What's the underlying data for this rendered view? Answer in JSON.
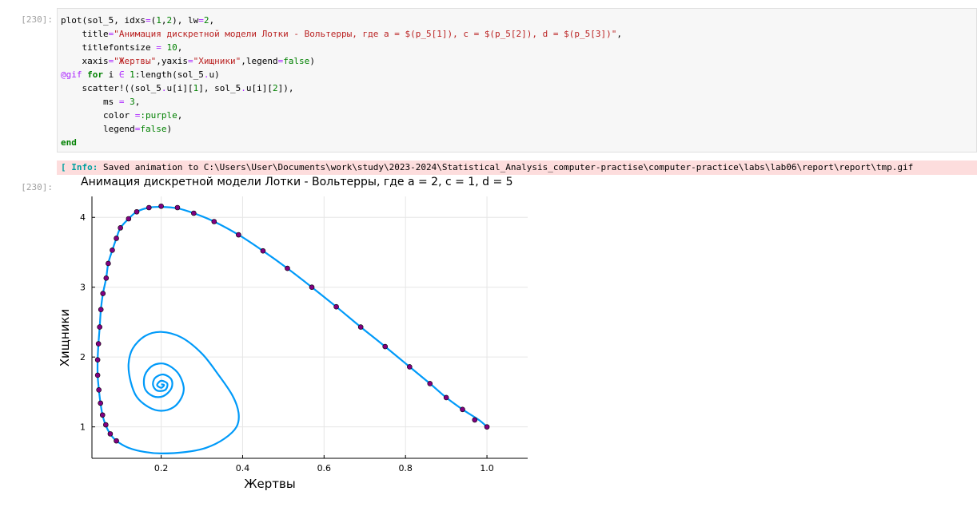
{
  "input_prompt": "[230]:",
  "output_prompt": "[230]:",
  "code_lines": [
    [
      [
        "plot(sol_5, idxs",
        ""
      ],
      [
        "=",
        "op"
      ],
      [
        "(",
        ""
      ],
      [
        "1",
        "num"
      ],
      [
        ",",
        ""
      ],
      [
        "2",
        "num"
      ],
      [
        "), lw",
        ""
      ],
      [
        "=",
        "op"
      ],
      [
        "2",
        "num"
      ],
      [
        ",",
        ""
      ]
    ],
    [
      [
        "    title",
        ""
      ],
      [
        "=",
        "op"
      ],
      [
        "\"Анимация дискретной модели Лотки - Вольтерры, где a = $(p_5[1]), c = $(p_5[2]), d = $(p_5[3])\"",
        "str"
      ],
      [
        ",",
        ""
      ]
    ],
    [
      [
        "    titlefontsize ",
        ""
      ],
      [
        "=",
        "op"
      ],
      [
        " ",
        ""
      ],
      [
        "10",
        "num"
      ],
      [
        ",",
        ""
      ]
    ],
    [
      [
        "    xaxis",
        ""
      ],
      [
        "=",
        "op"
      ],
      [
        "\"Жертвы\"",
        "str"
      ],
      [
        ",yaxis",
        ""
      ],
      [
        "=",
        "op"
      ],
      [
        "\"Хищники\"",
        "str"
      ],
      [
        ",legend",
        ""
      ],
      [
        "=",
        "op"
      ],
      [
        "false",
        "num"
      ],
      [
        ")",
        ""
      ]
    ],
    [
      [
        "@gif",
        "mac"
      ],
      [
        " ",
        ""
      ],
      [
        "for",
        "kw"
      ],
      [
        " i ",
        ""
      ],
      [
        "∈",
        "op"
      ],
      [
        " ",
        ""
      ],
      [
        "1",
        "num"
      ],
      [
        ":length(sol_5",
        ""
      ],
      [
        ".",
        "op"
      ],
      [
        "u)",
        ""
      ]
    ],
    [
      [
        "    scatter!((sol_5",
        ""
      ],
      [
        ".",
        "op"
      ],
      [
        "u[i][",
        ""
      ],
      [
        "1",
        "num"
      ],
      [
        "], sol_5",
        ""
      ],
      [
        ".",
        "op"
      ],
      [
        "u[i][",
        ""
      ],
      [
        "2",
        "num"
      ],
      [
        "]),",
        ""
      ]
    ],
    [
      [
        "        ms ",
        ""
      ],
      [
        "=",
        "op"
      ],
      [
        " ",
        ""
      ],
      [
        "3",
        "num"
      ],
      [
        ",",
        ""
      ]
    ],
    [
      [
        "        color ",
        ""
      ],
      [
        "=",
        "op"
      ],
      [
        ":purple",
        "sym"
      ],
      [
        ",",
        ""
      ]
    ],
    [
      [
        "        legend",
        ""
      ],
      [
        "=",
        "op"
      ],
      [
        "false",
        "num"
      ],
      [
        ")",
        ""
      ]
    ],
    [
      [
        "end",
        "kw"
      ]
    ]
  ],
  "stderr": {
    "tag": "[ Info:",
    "message": " Saved animation to C:\\Users\\User\\Documents\\work\\study\\2023-2024\\Statistical_Analysis_computer-practise\\computer-practice\\labs\\lab06\\report\\report\\tmp.gif"
  },
  "chart_data": {
    "type": "line",
    "title": "Анимация дискретной модели Лотки - Вольтерры, где a = 2, c = 1, d = 5",
    "xlabel": "Жертвы",
    "ylabel": "Хищники",
    "xlim": [
      0.03,
      1.1
    ],
    "ylim": [
      0.55,
      4.3
    ],
    "xticks": [
      0.2,
      0.4,
      0.6,
      0.8,
      1.0
    ],
    "xtick_labels": [
      "0.2",
      "0.4",
      "0.6",
      "0.8",
      "1.0"
    ],
    "yticks": [
      1,
      2,
      3,
      4
    ],
    "ytick_labels": [
      "1",
      "2",
      "3",
      "4"
    ],
    "grid": true,
    "legend": false,
    "line_color": "#009af9",
    "marker_color": "#800080",
    "spiral_center": [
      0.2,
      1.6
    ],
    "outer_path": [
      [
        1.0,
        1.0
      ],
      [
        0.98,
        1.1
      ],
      [
        0.94,
        1.25
      ],
      [
        0.9,
        1.42
      ],
      [
        0.86,
        1.62
      ],
      [
        0.81,
        1.86
      ],
      [
        0.75,
        2.15
      ],
      [
        0.69,
        2.43
      ],
      [
        0.63,
        2.72
      ],
      [
        0.57,
        3.0
      ],
      [
        0.51,
        3.27
      ],
      [
        0.45,
        3.52
      ],
      [
        0.39,
        3.75
      ],
      [
        0.33,
        3.94
      ],
      [
        0.28,
        4.06
      ],
      [
        0.24,
        4.13
      ],
      [
        0.2,
        4.15
      ],
      [
        0.17,
        4.14
      ],
      [
        0.14,
        4.08
      ],
      [
        0.12,
        3.98
      ],
      [
        0.1,
        3.85
      ],
      [
        0.09,
        3.7
      ],
      [
        0.08,
        3.53
      ],
      [
        0.07,
        3.34
      ],
      [
        0.065,
        3.13
      ],
      [
        0.057,
        2.91
      ],
      [
        0.052,
        2.68
      ],
      [
        0.049,
        2.43
      ],
      [
        0.046,
        2.19
      ],
      [
        0.044,
        1.96
      ],
      [
        0.044,
        1.74
      ],
      [
        0.047,
        1.53
      ],
      [
        0.051,
        1.34
      ],
      [
        0.056,
        1.17
      ],
      [
        0.064,
        1.02
      ],
      [
        0.075,
        0.9
      ],
      [
        0.09,
        0.8
      ],
      [
        0.12,
        0.7
      ],
      [
        0.16,
        0.64
      ],
      [
        0.2,
        0.62
      ],
      [
        0.26,
        0.64
      ],
      [
        0.31,
        0.7
      ],
      [
        0.355,
        0.83
      ],
      [
        0.385,
        1.0
      ],
      [
        0.39,
        1.2
      ],
      [
        0.375,
        1.45
      ],
      [
        0.34,
        1.75
      ],
      [
        0.3,
        2.05
      ],
      [
        0.25,
        2.28
      ],
      [
        0.2,
        2.36
      ],
      [
        0.16,
        2.3
      ],
      [
        0.13,
        2.12
      ],
      [
        0.12,
        1.9
      ],
      [
        0.125,
        1.65
      ],
      [
        0.14,
        1.43
      ],
      [
        0.17,
        1.28
      ],
      [
        0.2,
        1.23
      ],
      [
        0.23,
        1.28
      ],
      [
        0.25,
        1.42
      ],
      [
        0.255,
        1.58
      ],
      [
        0.24,
        1.78
      ],
      [
        0.21,
        1.9
      ],
      [
        0.18,
        1.88
      ],
      [
        0.16,
        1.74
      ],
      [
        0.16,
        1.55
      ],
      [
        0.18,
        1.44
      ],
      [
        0.205,
        1.44
      ],
      [
        0.225,
        1.55
      ],
      [
        0.225,
        1.68
      ],
      [
        0.205,
        1.75
      ],
      [
        0.185,
        1.7
      ],
      [
        0.18,
        1.6
      ],
      [
        0.19,
        1.52
      ],
      [
        0.21,
        1.53
      ],
      [
        0.215,
        1.62
      ],
      [
        0.2,
        1.66
      ],
      [
        0.19,
        1.6
      ],
      [
        0.2,
        1.56
      ],
      [
        0.207,
        1.6
      ],
      [
        0.2,
        1.61
      ]
    ],
    "markers": [
      [
        1.0,
        1.0
      ],
      [
        0.97,
        1.1
      ],
      [
        0.94,
        1.25
      ],
      [
        0.9,
        1.42
      ],
      [
        0.86,
        1.62
      ],
      [
        0.81,
        1.86
      ],
      [
        0.75,
        2.15
      ],
      [
        0.69,
        2.43
      ],
      [
        0.63,
        2.72
      ],
      [
        0.57,
        3.0
      ],
      [
        0.51,
        3.27
      ],
      [
        0.45,
        3.52
      ],
      [
        0.39,
        3.75
      ],
      [
        0.33,
        3.94
      ],
      [
        0.28,
        4.06
      ],
      [
        0.24,
        4.14
      ],
      [
        0.2,
        4.16
      ],
      [
        0.17,
        4.14
      ],
      [
        0.14,
        4.08
      ],
      [
        0.12,
        3.98
      ],
      [
        0.1,
        3.85
      ],
      [
        0.09,
        3.7
      ],
      [
        0.08,
        3.53
      ],
      [
        0.07,
        3.34
      ],
      [
        0.065,
        3.13
      ],
      [
        0.057,
        2.91
      ],
      [
        0.052,
        2.68
      ],
      [
        0.049,
        2.43
      ],
      [
        0.046,
        2.19
      ],
      [
        0.044,
        1.96
      ],
      [
        0.044,
        1.74
      ],
      [
        0.047,
        1.53
      ],
      [
        0.051,
        1.34
      ],
      [
        0.056,
        1.17
      ],
      [
        0.064,
        1.03
      ],
      [
        0.075,
        0.9
      ],
      [
        0.09,
        0.8
      ]
    ]
  }
}
